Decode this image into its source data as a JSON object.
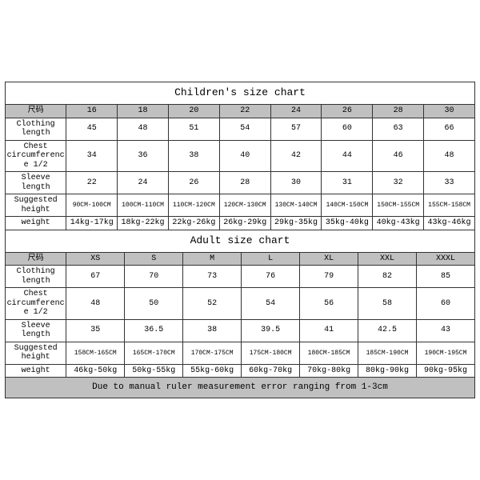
{
  "children": {
    "title": "Children's size chart",
    "header_label": "尺码",
    "sizes": [
      "16",
      "18",
      "20",
      "22",
      "24",
      "26",
      "28",
      "30"
    ],
    "rows": [
      {
        "label": "Clothing length",
        "cells": [
          "45",
          "48",
          "51",
          "54",
          "57",
          "60",
          "63",
          "66"
        ]
      },
      {
        "label": "Chest circumference 1/2",
        "cells": [
          "34",
          "36",
          "38",
          "40",
          "42",
          "44",
          "46",
          "48"
        ]
      },
      {
        "label": "Sleeve length",
        "cells": [
          "22",
          "24",
          "26",
          "28",
          "30",
          "31",
          "32",
          "33"
        ]
      },
      {
        "label": "Suggested height",
        "cells": [
          "90CM-100CM",
          "100CM-110CM",
          "110CM-120CM",
          "120CM-130CM",
          "130CM-140CM",
          "140CM-150CM",
          "150CM-155CM",
          "155CM-158CM"
        ],
        "small": true
      },
      {
        "label": "weight",
        "cells": [
          "14kg-17kg",
          "18kg-22kg",
          "22kg-26kg",
          "26kg-29kg",
          "29kg-35kg",
          "35kg-40kg",
          "40kg-43kg",
          "43kg-46kg"
        ]
      }
    ]
  },
  "adult": {
    "title": "Adult size chart",
    "header_label": "尺码",
    "sizes": [
      "XS",
      "S",
      "M",
      "L",
      "XL",
      "XXL",
      "XXXL"
    ],
    "rows": [
      {
        "label": "Clothing length",
        "cells": [
          "67",
          "70",
          "73",
          "76",
          "79",
          "82",
          "85"
        ]
      },
      {
        "label": "Chest circumference 1/2",
        "cells": [
          "48",
          "50",
          "52",
          "54",
          "56",
          "58",
          "60"
        ]
      },
      {
        "label": "Sleeve length",
        "cells": [
          "35",
          "36.5",
          "38",
          "39.5",
          "41",
          "42.5",
          "43"
        ]
      },
      {
        "label": "Suggested height",
        "cells": [
          "158CM-165CM",
          "165CM-170CM",
          "170CM-175CM",
          "175CM-180CM",
          "180CM-185CM",
          "185CM-190CM",
          "190CM-195CM"
        ],
        "small": true
      },
      {
        "label": "weight",
        "cells": [
          "46kg-50kg",
          "50kg-55kg",
          "55kg-60kg",
          "60kg-70kg",
          "70kg-80kg",
          "80kg-90kg",
          "90kg-95kg"
        ]
      }
    ]
  },
  "note": "Due to manual ruler measurement error ranging from 1-3cm",
  "colors": {
    "header_bg": "#c0c0c0",
    "border": "#333333",
    "bg": "#ffffff"
  }
}
